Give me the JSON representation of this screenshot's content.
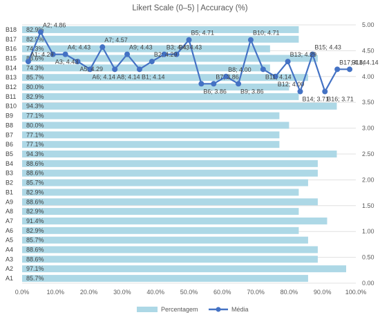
{
  "chart_data": {
    "type": "bar+line",
    "title": "Likert Scale (0–5) | Accuracy (%)",
    "categories": [
      "A1",
      "A2",
      "A3",
      "A4",
      "A5",
      "A6",
      "A7",
      "A8",
      "A9",
      "B1",
      "B2",
      "B3",
      "B4",
      "B5",
      "B6",
      "B7",
      "B8",
      "B9",
      "B10",
      "B11",
      "B12",
      "B13",
      "B14",
      "B15",
      "B16",
      "B17",
      "B18"
    ],
    "bar_series": {
      "name": "Percentagem",
      "orientation": "horizontal",
      "color": "#add8e6",
      "values": [
        85.7,
        97.1,
        88.6,
        88.6,
        85.7,
        82.9,
        91.4,
        82.9,
        88.6,
        82.9,
        85.7,
        88.6,
        88.6,
        94.3,
        77.1,
        77.1,
        80.0,
        77.1,
        94.3,
        82.9,
        80.0,
        85.7,
        74.3,
        88.6,
        74.3,
        82.9,
        82.9
      ],
      "labels": [
        "85.7%",
        "97.1%",
        "88.6%",
        "88.6%",
        "85.7%",
        "82.9%",
        "91.4%",
        "82.9%",
        "88.6%",
        "82.9%",
        "85.7%",
        "88.6%",
        "88.6%",
        "94.3%",
        "77.1%",
        "77.1%",
        "80.0%",
        "77.1%",
        "94.3%",
        "82.9%",
        "80.0%",
        "85.7%",
        "74.3%",
        "88.6%",
        "74.3%",
        "82.9%",
        "82.9%"
      ],
      "axis": {
        "range": [
          0,
          100
        ],
        "ticks": [
          "0.0%",
          "10.0%",
          "20.0%",
          "30.0%",
          "40.0%",
          "50.0%",
          "60.0%",
          "70.0%",
          "80.0%",
          "90.0%",
          "100.0%"
        ]
      }
    },
    "line_series": {
      "name": "Média",
      "color": "#4472c4",
      "values": [
        4.29,
        4.86,
        4.43,
        4.43,
        4.29,
        4.14,
        4.57,
        4.14,
        4.43,
        4.14,
        4.29,
        4.43,
        4.43,
        4.71,
        3.86,
        3.86,
        4.0,
        3.86,
        4.71,
        4.14,
        4.0,
        4.29,
        3.71,
        4.43,
        3.71,
        4.14,
        4.14
      ],
      "labels": [
        "A1; 4.29",
        "A2; 4.86",
        "A3; 4.43",
        "A4; 4.43",
        "A5; 4.29",
        "A6; 4.14",
        "A7; 4.57",
        "A8; 4.14",
        "A9; 4.43",
        "B1; 4.14",
        "B2; 4.29",
        "B3; 4.43",
        "B4; 4.43",
        "B5; 4.71",
        "B6; 3.86",
        "B7; 3.86",
        "B8; 4.00",
        "B9; 3.86",
        "B10; 4.71",
        "B11; 4.14",
        "B12; 4.00",
        "B13; 4.29",
        "B14; 3.71",
        "B15; 4.43",
        "B16; 3.71",
        "B17; 4.14",
        "B18; 4.14"
      ],
      "axis": {
        "range": [
          0,
          5
        ],
        "ticks": [
          "0.00",
          "0.50",
          "1.00",
          "1.50",
          "2.00",
          "2.50",
          "3.00",
          "3.50",
          "4.00",
          "4.50",
          "5.00"
        ]
      }
    },
    "grid": true,
    "legend": {
      "position": "bottom",
      "entries": [
        "Percentagem",
        "Média"
      ]
    }
  }
}
